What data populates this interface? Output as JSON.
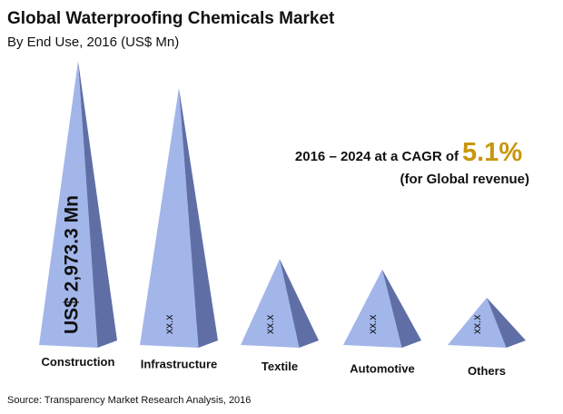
{
  "chart_data": {
    "type": "pyramid",
    "title": "Global Waterproofing Chemicals Market",
    "subtitle": "By End Use, 2016 (US$ Mn)",
    "categories": [
      "Construction",
      "Infrastructure",
      "Textile",
      "Automotive",
      "Others"
    ],
    "values": [
      2973.3,
      2690,
      900,
      790,
      495
    ],
    "value_labels": [
      "US$ 2,973.3 Mn",
      "xx.x",
      "xx.x",
      "xx.x",
      "xx.x"
    ],
    "color": "#a3b6ea",
    "annotation": {
      "text": "2016 – 2024 at a CAGR of",
      "highlight": "5.1%",
      "note": "(for Global revenue)"
    },
    "source": "Source: Transparency Market Research Analysis, 2016"
  }
}
